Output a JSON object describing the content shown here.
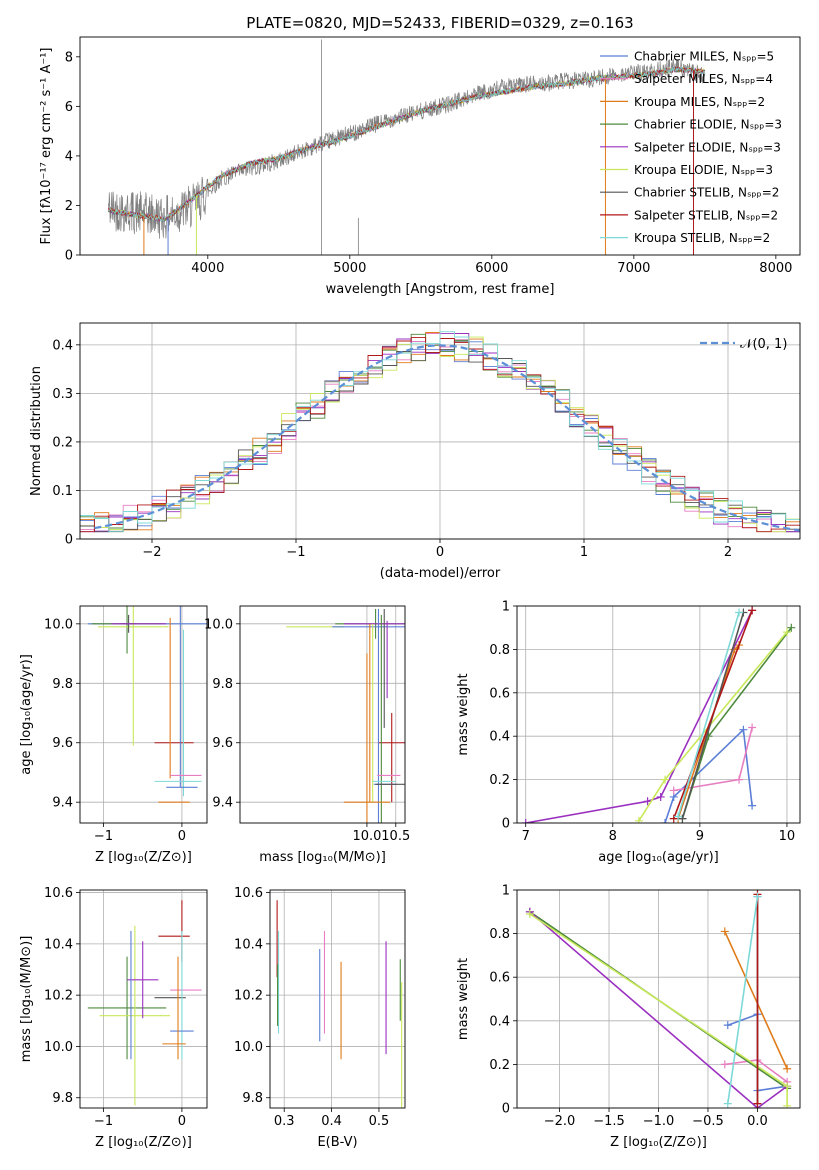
{
  "figure": {
    "title": "PLATE=0820, MJD=52433, FIBERID=0329, z=0.163"
  },
  "chart_data": [
    {
      "id": "spectrum",
      "type": "line",
      "xlabel": "wavelength [Angstrom, rest frame]",
      "ylabel": "Flux [fλ10⁻¹⁷ erg cm⁻² s⁻¹ A⁻¹]",
      "xlim": [
        3100,
        8170
      ],
      "ylim": [
        0,
        8.8
      ],
      "xticks": [
        4000,
        5000,
        6000,
        7000,
        8000
      ],
      "yticks": [
        0,
        2,
        4,
        6,
        8
      ],
      "grid": false,
      "legend_position": "upper-right",
      "observed": {
        "color": "#808080",
        "x": [
          3300,
          3500,
          3700,
          3900,
          4100,
          4300,
          4500,
          4700,
          4900,
          5100,
          5300,
          5500,
          5700,
          5900,
          6100,
          6300,
          6500,
          6700,
          6900,
          7100,
          7300,
          7500
        ],
        "y": [
          1.9,
          1.7,
          1.5,
          2.0,
          3.1,
          3.5,
          3.8,
          4.3,
          4.7,
          5.1,
          5.5,
          5.8,
          6.1,
          6.5,
          6.8,
          6.9,
          7.0,
          7.1,
          7.3,
          7.4,
          7.6,
          7.2
        ]
      },
      "models": {
        "x": [
          3300,
          3500,
          3700,
          3900,
          4100,
          4300,
          4500,
          4700,
          4900,
          5100,
          5300,
          5500,
          5700,
          5900,
          6100,
          6300,
          6500,
          6700,
          6900,
          7100,
          7300,
          7500
        ],
        "y": [
          1.8,
          1.6,
          1.45,
          2.3,
          3.2,
          3.7,
          3.9,
          4.3,
          4.6,
          5.0,
          5.4,
          5.8,
          6.1,
          6.4,
          6.6,
          6.8,
          6.9,
          7.1,
          7.2,
          7.3,
          7.5,
          7.4
        ]
      },
      "legend": [
        "Chabrier MILES, Nₛₚₚ=5",
        "Salpeter MILES, Nₛₚₚ=4",
        "Kroupa MILES, Nₛₚₚ=2",
        "Chabrier ELODIE, Nₛₚₚ=3",
        "Salpeter ELODIE, Nₛₚₚ=3",
        "Kroupa ELODIE, Nₛₚₚ=3",
        "Chabrier STELIB, Nₛₚₚ=2",
        "Salpeter STELIB, Nₛₚₚ=2",
        "Kroupa STELIB, Nₛₚₚ=2"
      ]
    },
    {
      "id": "residuals",
      "type": "line",
      "xlabel": "(data-model)/error",
      "ylabel": "Normed distribution",
      "xlim": [
        -2.5,
        2.5
      ],
      "ylim": [
        0,
        0.445
      ],
      "xticks": [
        -2,
        -1,
        0,
        1,
        2
      ],
      "xticklabels": [
        "−2",
        "−1",
        "0",
        "1",
        "2"
      ],
      "yticks": [
        0.0,
        0.1,
        0.2,
        0.3,
        0.4
      ],
      "grid": true,
      "legend_position": "upper-right",
      "gaussian_label": "𝒩(0, 1)",
      "bin_width": 0.1
    },
    {
      "id": "age-vs-Z",
      "type": "scatter",
      "xlabel": "Z [log₁₀(Z/Z⊙)]",
      "ylabel": "age  [log₁₀(age/yr)]",
      "xlim": [
        -1.3,
        0.32
      ],
      "ylim": [
        9.33,
        10.06
      ],
      "xticks": [
        -1,
        0
      ],
      "xticklabels": [
        "−1",
        "0"
      ],
      "yticks": [
        9.4,
        9.6,
        9.8,
        10.0
      ],
      "yticklabels": [
        "9.4",
        "9.6",
        "9.8",
        "10.0"
      ],
      "grid": true,
      "points": [
        {
          "x": -0.2,
          "y": 10.0,
          "xerr": 1.0,
          "yerr": 0.0,
          "s": 0
        },
        {
          "x": -0.7,
          "y": 10.0,
          "xerr": 0.45,
          "yerr": 0.1,
          "s": 3
        },
        {
          "x": -0.62,
          "y": 9.99,
          "xerr": 0.45,
          "yerr": 0.4,
          "s": 5
        },
        {
          "x": -0.68,
          "y": 10.0,
          "xerr": 0.1,
          "yerr": 0.03,
          "s": 6
        },
        {
          "x": -0.55,
          "y": 10.0,
          "xerr": 0.35,
          "yerr": 0.0,
          "s": 4
        },
        {
          "x": -0.1,
          "y": 9.6,
          "xerr": 0.25,
          "yerr": 0.0,
          "s": 7
        },
        {
          "x": -0.15,
          "y": 9.75,
          "xerr": 0.0,
          "yerr": 0.27,
          "s": 2
        },
        {
          "x": -0.02,
          "y": 9.8,
          "xerr": 0.0,
          "yerr": 0.35,
          "s": 0
        },
        {
          "x": 0.02,
          "y": 9.7,
          "xerr": 0.0,
          "yerr": 0.28,
          "s": 8
        },
        {
          "x": 0.05,
          "y": 9.49,
          "xerr": 0.2,
          "yerr": 0.0,
          "s": 1
        },
        {
          "x": -0.05,
          "y": 9.47,
          "xerr": 0.3,
          "yerr": 0.0,
          "s": 8
        },
        {
          "x": 0.0,
          "y": 9.45,
          "xerr": 0.2,
          "yerr": 0.0,
          "s": 0
        },
        {
          "x": -0.1,
          "y": 9.4,
          "xerr": 0.2,
          "yerr": 0.0,
          "s": 2
        }
      ]
    },
    {
      "id": "age-vs-mass",
      "type": "scatter",
      "xlabel": "mass [log₁₀(M/M⊙)]",
      "ylabel": "",
      "xlim": [
        7.8,
        10.66
      ],
      "ylim": [
        9.33,
        10.06
      ],
      "xticks": [
        10.0,
        10.5
      ],
      "xticklabels": [
        "10.0",
        "10.5"
      ],
      "yticks": [
        9.4,
        9.6,
        9.8,
        10.0
      ],
      "yticklabels": [
        "9.4",
        "9.6",
        "9.8",
        "10.0"
      ],
      "grid": true,
      "points": [
        {
          "x": 9.1,
          "y": 9.99,
          "xerr": 0.5,
          "yerr": 0.0,
          "s": 5
        },
        {
          "x": 10.15,
          "y": 10.0,
          "xerr": 0.7,
          "yerr": 0.05,
          "s": 3
        },
        {
          "x": 10.1,
          "y": 9.99,
          "xerr": 0.7,
          "yerr": 0.0,
          "s": 0
        },
        {
          "x": 10.2,
          "y": 10.0,
          "xerr": 0.6,
          "yerr": 0.0,
          "s": 4
        },
        {
          "x": 10.35,
          "y": 9.88,
          "xerr": 0.0,
          "yerr": 0.13,
          "s": 4
        },
        {
          "x": 10.3,
          "y": 9.85,
          "xerr": 0.0,
          "yerr": 0.2,
          "s": 6
        },
        {
          "x": 10.5,
          "y": 9.6,
          "xerr": 0.3,
          "yerr": 0.0,
          "s": 7
        },
        {
          "x": 10.43,
          "y": 9.55,
          "xerr": 0.0,
          "yerr": 0.15,
          "s": 7
        },
        {
          "x": 10.05,
          "y": 9.7,
          "xerr": 0.0,
          "yerr": 0.3,
          "s": 2
        },
        {
          "x": 10.2,
          "y": 9.65,
          "xerr": 0.0,
          "yerr": 0.4,
          "s": 0
        },
        {
          "x": 10.1,
          "y": 9.7,
          "xerr": 0.0,
          "yerr": 0.3,
          "s": 5
        },
        {
          "x": 10.25,
          "y": 9.68,
          "xerr": 0.0,
          "yerr": 0.35,
          "s": 3
        },
        {
          "x": 10.38,
          "y": 9.49,
          "xerr": 0.2,
          "yerr": 0.0,
          "s": 1
        },
        {
          "x": 10.3,
          "y": 9.47,
          "xerr": 0.2,
          "yerr": 0.0,
          "s": 8
        },
        {
          "x": 10.32,
          "y": 9.46,
          "xerr": 0.2,
          "yerr": 0.0,
          "s": 0
        },
        {
          "x": 10.4,
          "y": 9.46,
          "xerr": 0.25,
          "yerr": 0.0,
          "s": 6
        },
        {
          "x": 10.0,
          "y": 9.4,
          "xerr": 0.4,
          "yerr": 0.0,
          "s": 2
        },
        {
          "x": 10.0,
          "y": 9.6,
          "xerr": 0.0,
          "yerr": 0.3,
          "s": 2
        }
      ]
    },
    {
      "id": "massweight-vs-age",
      "type": "line",
      "xlabel": "age  [log₁₀(age/yr)]",
      "ylabel": "mass weight",
      "xlim": [
        6.9,
        10.15
      ],
      "ylim": [
        0,
        1.0
      ],
      "xticks": [
        7,
        8,
        9,
        10
      ],
      "yticks": [
        0.0,
        0.2,
        0.4,
        0.6,
        0.8,
        1.0
      ],
      "grid": true,
      "series": [
        {
          "s": 0,
          "x": [
            8.6,
            8.7,
            9.5,
            9.6
          ],
          "y": [
            0.0,
            0.12,
            0.43,
            0.08
          ]
        },
        {
          "s": 1,
          "x": [
            8.7,
            9.45,
            9.6
          ],
          "y": [
            0.15,
            0.2,
            0.44
          ]
        },
        {
          "s": 2,
          "x": [
            8.75,
            9.4,
            9.45
          ],
          "y": [
            0.02,
            0.8,
            0.82
          ]
        },
        {
          "s": 3,
          "x": [
            8.8,
            9.1,
            10.05
          ],
          "y": [
            0.02,
            0.4,
            0.9
          ]
        },
        {
          "s": 4,
          "x": [
            7.0,
            8.4,
            8.55,
            9.6
          ],
          "y": [
            0.0,
            0.1,
            0.12,
            0.98
          ]
        },
        {
          "s": 5,
          "x": [
            8.3,
            8.6,
            10.0
          ],
          "y": [
            0.01,
            0.2,
            0.88
          ]
        },
        {
          "s": 6,
          "x": [
            8.8,
            9.5
          ],
          "y": [
            0.02,
            0.97
          ]
        },
        {
          "s": 7,
          "x": [
            8.7,
            9.6
          ],
          "y": [
            0.02,
            0.98
          ]
        },
        {
          "s": 8,
          "x": [
            8.75,
            9.45
          ],
          "y": [
            0.03,
            0.97
          ]
        }
      ]
    },
    {
      "id": "mass-vs-Z",
      "type": "scatter",
      "xlabel": "Z [log₁₀(Z/Z⊙)]",
      "ylabel": "mass [log₁₀(M/M⊙)]",
      "xlim": [
        -1.3,
        0.32
      ],
      "ylim": [
        9.76,
        10.61
      ],
      "xticks": [
        -1,
        0
      ],
      "xticklabels": [
        "−1",
        "0"
      ],
      "yticks": [
        9.8,
        10.0,
        10.2,
        10.4,
        10.6
      ],
      "yticklabels": [
        "9.8",
        "10.0",
        "10.2",
        "10.4",
        "10.6"
      ],
      "grid": true,
      "points": [
        {
          "x": -0.7,
          "y": 10.15,
          "xerr": 0.5,
          "yerr": 0.2,
          "s": 3
        },
        {
          "x": -0.6,
          "y": 10.12,
          "xerr": 0.45,
          "yerr": 0.35,
          "s": 5
        },
        {
          "x": -0.5,
          "y": 10.26,
          "xerr": 0.2,
          "yerr": 0.15,
          "s": 4
        },
        {
          "x": -0.65,
          "y": 10.2,
          "xerr": 0.0,
          "yerr": 0.25,
          "s": 0
        },
        {
          "x": -0.15,
          "y": 10.19,
          "xerr": 0.2,
          "yerr": 0.0,
          "s": 6
        },
        {
          "x": -0.1,
          "y": 10.43,
          "xerr": 0.2,
          "yerr": 0.0,
          "s": 7
        },
        {
          "x": 0.0,
          "y": 10.45,
          "xerr": 0.0,
          "yerr": 0.12,
          "s": 7
        },
        {
          "x": 0.05,
          "y": 10.22,
          "xerr": 0.2,
          "yerr": 0.0,
          "s": 1
        },
        {
          "x": 0.0,
          "y": 10.2,
          "xerr": 0.0,
          "yerr": 0.25,
          "s": 8
        },
        {
          "x": 0.0,
          "y": 10.06,
          "xerr": 0.15,
          "yerr": 0.0,
          "s": 0
        },
        {
          "x": -0.1,
          "y": 10.01,
          "xerr": 0.15,
          "yerr": 0.0,
          "s": 2
        },
        {
          "x": -0.05,
          "y": 10.15,
          "xerr": 0.0,
          "yerr": 0.2,
          "s": 2
        }
      ]
    },
    {
      "id": "mass-vs-EBV",
      "type": "scatter",
      "xlabel": "E(B-V)",
      "ylabel": "",
      "xlim": [
        0.27,
        0.555
      ],
      "ylim": [
        9.76,
        10.61
      ],
      "xticks": [
        0.3,
        0.4,
        0.5
      ],
      "xticklabels": [
        "0.3",
        "0.4",
        "0.5"
      ],
      "yticks": [
        9.8,
        10.0,
        10.2,
        10.4,
        10.6
      ],
      "yticklabels": [
        "9.8",
        "10.0",
        "10.2",
        "10.4",
        "10.6"
      ],
      "grid": true,
      "points": [
        {
          "x": 0.285,
          "y": 10.42,
          "xerr": 0.0,
          "yerr": 0.15,
          "s": 7
        },
        {
          "x": 0.288,
          "y": 10.25,
          "xerr": 0.0,
          "yerr": 0.2,
          "s": 8
        },
        {
          "x": 0.286,
          "y": 10.2,
          "xerr": 0.0,
          "yerr": 0.12,
          "s": 3
        },
        {
          "x": 0.375,
          "y": 10.2,
          "xerr": 0.0,
          "yerr": 0.18,
          "s": 0
        },
        {
          "x": 0.385,
          "y": 10.25,
          "xerr": 0.0,
          "yerr": 0.2,
          "s": 1
        },
        {
          "x": 0.42,
          "y": 10.14,
          "xerr": 0.0,
          "yerr": 0.19,
          "s": 2
        },
        {
          "x": 0.515,
          "y": 10.19,
          "xerr": 0.0,
          "yerr": 0.22,
          "s": 4
        },
        {
          "x": 0.545,
          "y": 10.22,
          "xerr": 0.0,
          "yerr": 0.12,
          "s": 3
        },
        {
          "x": 0.548,
          "y": 10.0,
          "xerr": 0.0,
          "yerr": 0.25,
          "s": 5
        }
      ]
    },
    {
      "id": "massweight-vs-Z",
      "type": "line",
      "xlabel": "Z [log₁₀(Z/Z⊙)]",
      "ylabel": "mass weight",
      "xlim": [
        -2.43,
        0.43
      ],
      "ylim": [
        0,
        1.0
      ],
      "xticks": [
        -2.0,
        -1.5,
        -1.0,
        -0.5,
        0.0
      ],
      "xticklabels": [
        "−2.0",
        "−1.5",
        "−1.0",
        "−0.5",
        "0.0"
      ],
      "yticks": [
        0.0,
        0.2,
        0.4,
        0.6,
        0.8,
        1.0
      ],
      "grid": true,
      "series": [
        {
          "s": 0,
          "x": [
            -0.3,
            0.0,
            0.0,
            0.3
          ],
          "y": [
            0.38,
            0.43,
            0.08,
            0.1
          ]
        },
        {
          "s": 1,
          "x": [
            -0.33,
            0.0,
            0.3
          ],
          "y": [
            0.2,
            0.22,
            0.12
          ]
        },
        {
          "s": 2,
          "x": [
            -0.33,
            0.3
          ],
          "y": [
            0.81,
            0.18
          ]
        },
        {
          "s": 3,
          "x": [
            -2.3,
            0.3
          ],
          "y": [
            0.9,
            0.09
          ]
        },
        {
          "s": 4,
          "x": [
            -2.3,
            0.0,
            0.3
          ],
          "y": [
            0.9,
            0.0,
            0.1
          ]
        },
        {
          "s": 5,
          "x": [
            -2.3,
            0.3,
            0.3
          ],
          "y": [
            0.89,
            0.1,
            0.01
          ]
        },
        {
          "s": 6,
          "x": [
            0.0,
            0.0
          ],
          "y": [
            0.02,
            0.97
          ]
        },
        {
          "s": 7,
          "x": [
            0.0,
            0.0
          ],
          "y": [
            0.02,
            0.98
          ]
        },
        {
          "s": 8,
          "x": [
            -0.3,
            0.0
          ],
          "y": [
            0.02,
            0.97
          ]
        }
      ]
    }
  ],
  "colors": {
    "series": [
      "#5b7fd6",
      "#e87ec2",
      "#e07b1a",
      "#4d8a3c",
      "#9b30c0",
      "#c8e85a",
      "#555555",
      "#b01818",
      "#7ed8d8"
    ],
    "observed": "#808080",
    "gaussian": "#5b8fd6",
    "grid": "#b0b0b0"
  }
}
